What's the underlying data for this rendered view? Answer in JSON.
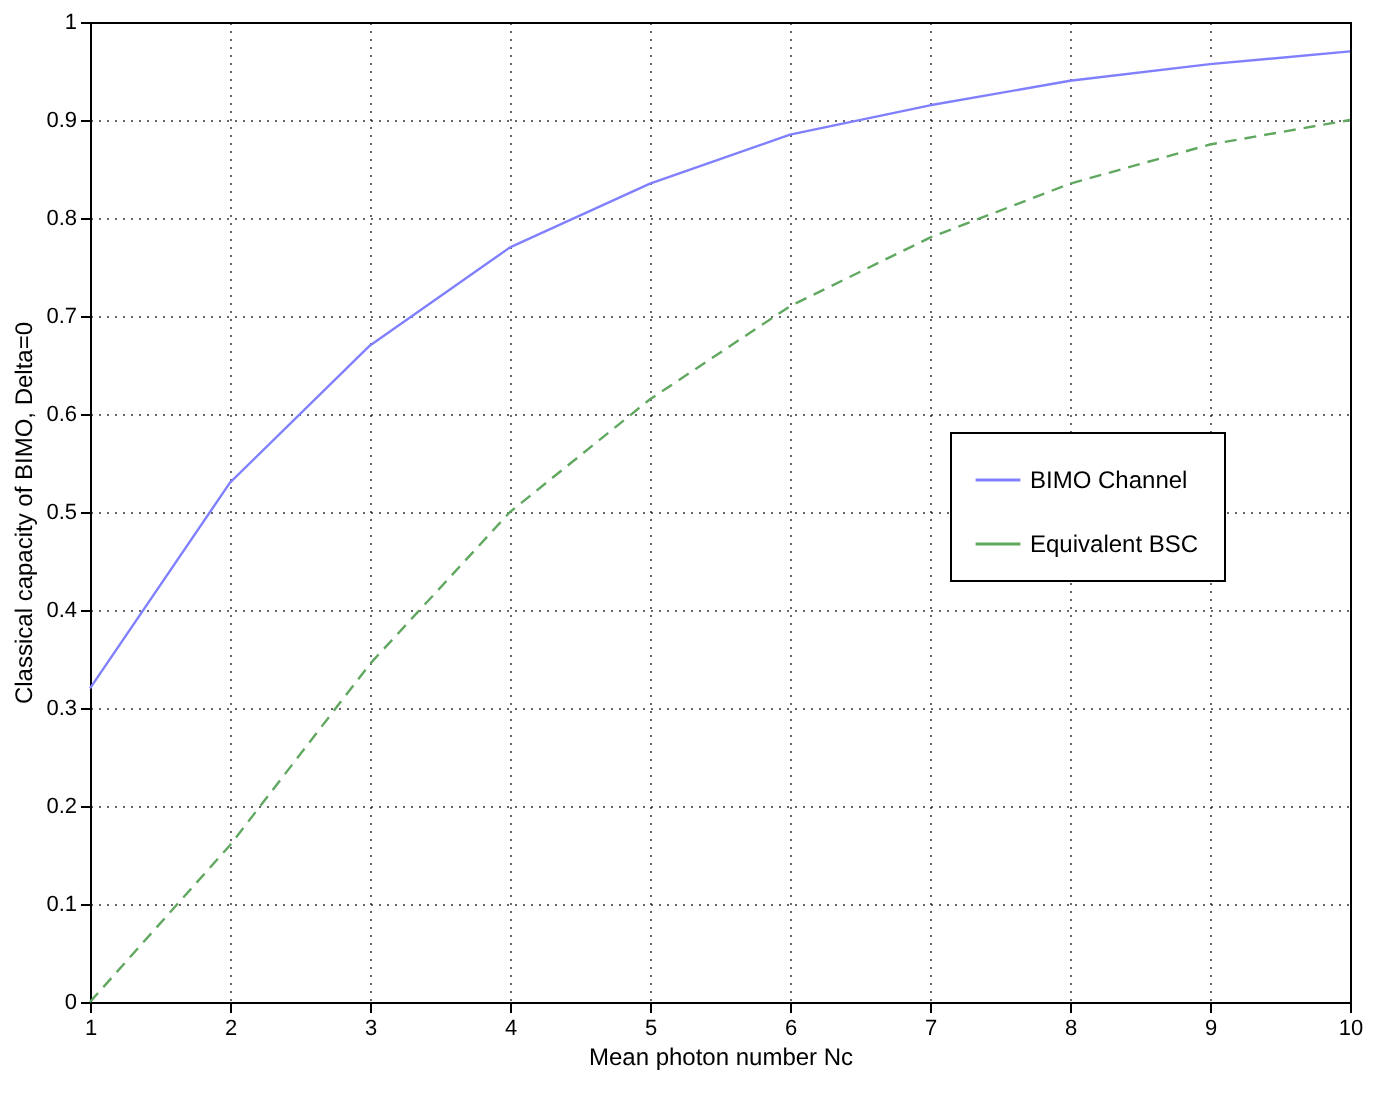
{
  "chart_data": {
    "type": "line",
    "xlabel": "Mean photon number Nc",
    "ylabel": "Classical capacity of BIMO, Delta=0",
    "x": [
      1,
      2,
      3,
      4,
      5,
      6,
      7,
      8,
      9,
      10
    ],
    "series": [
      {
        "name": "BIMO Channel",
        "color": "#8080ff",
        "line_style": "solid",
        "values": [
          0.32,
          0.53,
          0.67,
          0.77,
          0.835,
          0.885,
          0.915,
          0.94,
          0.957,
          0.97
        ]
      },
      {
        "name": "Equivalent BSC",
        "color": "#60a860",
        "line_style": "dashed",
        "values": [
          0.0,
          0.16,
          0.345,
          0.5,
          0.615,
          0.71,
          0.78,
          0.835,
          0.875,
          0.9
        ]
      }
    ],
    "xlim": [
      1,
      10
    ],
    "xticks": [
      1,
      2,
      3,
      4,
      5,
      6,
      7,
      8,
      9,
      10
    ],
    "ylim": [
      0,
      1
    ],
    "yticks": [
      0,
      0.1,
      0.2,
      0.3,
      0.4,
      0.5,
      0.6,
      0.7,
      0.8,
      0.9,
      1
    ],
    "grid": true,
    "legend": "right"
  }
}
